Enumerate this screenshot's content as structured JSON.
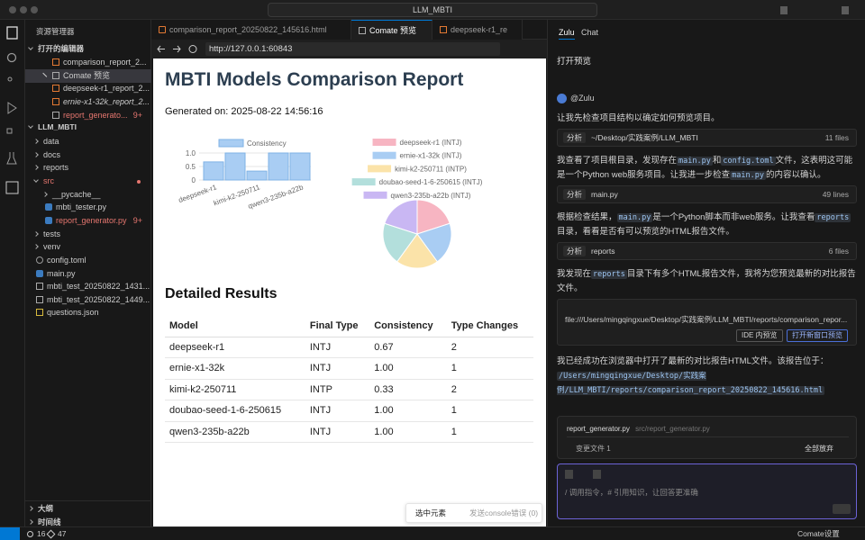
{
  "titlebar": {
    "search": "LLM_MBTI"
  },
  "sidebar": {
    "title": "资源管理器",
    "open_editors": {
      "title": "打开的编辑器",
      "items": [
        {
          "name": "comparison_report_2..."
        },
        {
          "name": "Comate 预览",
          "active": true
        },
        {
          "name": "deepseek-r1_report_2..."
        },
        {
          "name": "ernie-x1-32k_report_2...",
          "italic": true
        },
        {
          "name": "report_generato...",
          "badge": "9+",
          "error": true
        }
      ]
    },
    "project": {
      "title": "LLM_MBTI",
      "items": [
        {
          "name": "data",
          "folder": "closed",
          "level": 0
        },
        {
          "name": "docs",
          "folder": "closed",
          "level": 0
        },
        {
          "name": "reports",
          "folder": "closed",
          "level": 0
        },
        {
          "name": "src",
          "folder": "open",
          "level": 0,
          "error": true
        },
        {
          "name": "__pycache__",
          "folder": "closed",
          "level": 1
        },
        {
          "name": "mbti_tester.py",
          "level": 1
        },
        {
          "name": "report_generator.py",
          "level": 1,
          "badge": "9+",
          "error": true
        },
        {
          "name": "tests",
          "folder": "closed",
          "level": 0
        },
        {
          "name": "venv",
          "folder": "closed",
          "level": 0
        },
        {
          "name": "config.toml",
          "level": 0
        },
        {
          "name": "main.py",
          "level": 0
        },
        {
          "name": "mbti_test_20250822_1431...",
          "level": 0
        },
        {
          "name": "mbti_test_20250822_1449...",
          "level": 0
        },
        {
          "name": "questions.json",
          "level": 0
        }
      ]
    },
    "outline": "大纲",
    "timeline": "时间线"
  },
  "tabs": [
    "comparison_report_20250822_145616.html",
    "Comate 预览",
    "deepseek-r1_re"
  ],
  "browser": {
    "url": "http://127.0.0.1:60843"
  },
  "report": {
    "title": "MBTI Models Comparison Report",
    "generated": "Generated on: 2025-08-22 14:56:16",
    "section": "Detailed Results",
    "table": {
      "headers": [
        "Model",
        "Final Type",
        "Consistency",
        "Type Changes"
      ],
      "rows": [
        [
          "deepseek-r1",
          "INTJ",
          "0.67",
          "2"
        ],
        [
          "ernie-x1-32k",
          "INTJ",
          "1.00",
          "1"
        ],
        [
          "kimi-k2-250711",
          "INTP",
          "0.33",
          "2"
        ],
        [
          "doubao-seed-1-6-250615",
          "INTJ",
          "1.00",
          "1"
        ],
        [
          "qwen3-235b-a22b",
          "INTJ",
          "1.00",
          "1"
        ]
      ]
    },
    "toolbar": {
      "select": "选中元素",
      "console": "发送console错误 (0)"
    }
  },
  "chart_data": [
    {
      "type": "bar",
      "categories": [
        "deepseek-r1",
        null,
        "kimi-k2-250711",
        null,
        "qwen3-235b-a22b"
      ],
      "series": [
        {
          "name": "Consistency",
          "color": "#a9cdf3",
          "values": [
            0.67,
            1.0,
            0.33,
            1.0,
            1.0
          ]
        }
      ],
      "ylim": [
        0,
        1
      ],
      "yticks": [
        0,
        0.5,
        {
          "value": 1,
          "label": "1.0"
        }
      ],
      "grid": true
    },
    {
      "type": "pie",
      "labels": [
        "deepseek-r1 (INTJ)",
        "ernie-x1-32k (INTJ)",
        "kimi-k2-250711 (INTP)",
        "doubao-seed-1-6-250615 (INTJ)",
        "qwen3-235b-a22b (INTJ)"
      ],
      "values": [
        1,
        1,
        1,
        1,
        1
      ],
      "colors": [
        "#f7b5c2",
        "#a9cdf3",
        "#fbe3a9",
        "#b3dfdc",
        "#c9b7f3"
      ]
    }
  ],
  "chat": {
    "tabs": [
      "Zulu",
      "Chat"
    ],
    "prompt": "打开预览",
    "agent": "@Zulu",
    "messages": [
      {
        "segments": [
          {
            "text": "让我先检查项目结构以确定如何预览项目。"
          }
        ]
      },
      {
        "tool": "分析",
        "target": "~/Desktop/实践案例/LLM_MBTI",
        "count": "11 files"
      },
      {
        "segments": [
          {
            "text": "我查看了项目根目录，发现存在"
          },
          {
            "text": "main.py",
            "code": true
          },
          {
            "text": "和"
          },
          {
            "text": "config.toml",
            "code": true
          },
          {
            "text": "文件，这表明这可能是一个Python web服务项目。让我进一步检查"
          },
          {
            "text": "main.py",
            "code": true
          },
          {
            "text": "的内容以确认。"
          }
        ]
      },
      {
        "tool": "分析",
        "target": "main.py",
        "count": "49 lines"
      },
      {
        "segments": [
          {
            "text": "根据检查结果，"
          },
          {
            "text": "main.py",
            "code": true
          },
          {
            "text": "是一个Python脚本而非web服务。让我查看"
          },
          {
            "text": "reports",
            "code": true
          },
          {
            "text": "目录，看看是否有可以预览的HTML报告文件。"
          }
        ]
      },
      {
        "tool": "分析",
        "target": "reports",
        "count": "6 files"
      },
      {
        "segments": [
          {
            "text": "我发现在"
          },
          {
            "text": "reports",
            "code": true
          },
          {
            "text": "目录下有多个HTML报告文件，我将为您预览最新的对比报告文件。"
          }
        ]
      },
      {
        "link": "file:///Users/mingqingxue/Desktop/实践案例/LLM_MBTI/reports/comparison_repor...",
        "buttons": [
          "IDE 内预览",
          "打开新窗口预览"
        ]
      },
      {
        "segments": [
          {
            "text": "我已经成功在浏览器中打开了最新的对比报告HTML文件。该报告位于： "
          },
          {
            "text": "/Users/mingqingxue/Desktop/实践案例/LLM_MBTI/reports/comparison_report_20250822_145616.html",
            "code": true
          }
        ]
      }
    ],
    "changes": {
      "file": "report_generator.py",
      "path": "src/report_generator.py",
      "summary": "变更文件 1",
      "discard": "全部放弃"
    },
    "input": "/ 调用指令，# 引用知识，让回答更准确"
  },
  "statusbar": {
    "errors": "16",
    "warnings": "47",
    "settings": "Comate设置"
  }
}
